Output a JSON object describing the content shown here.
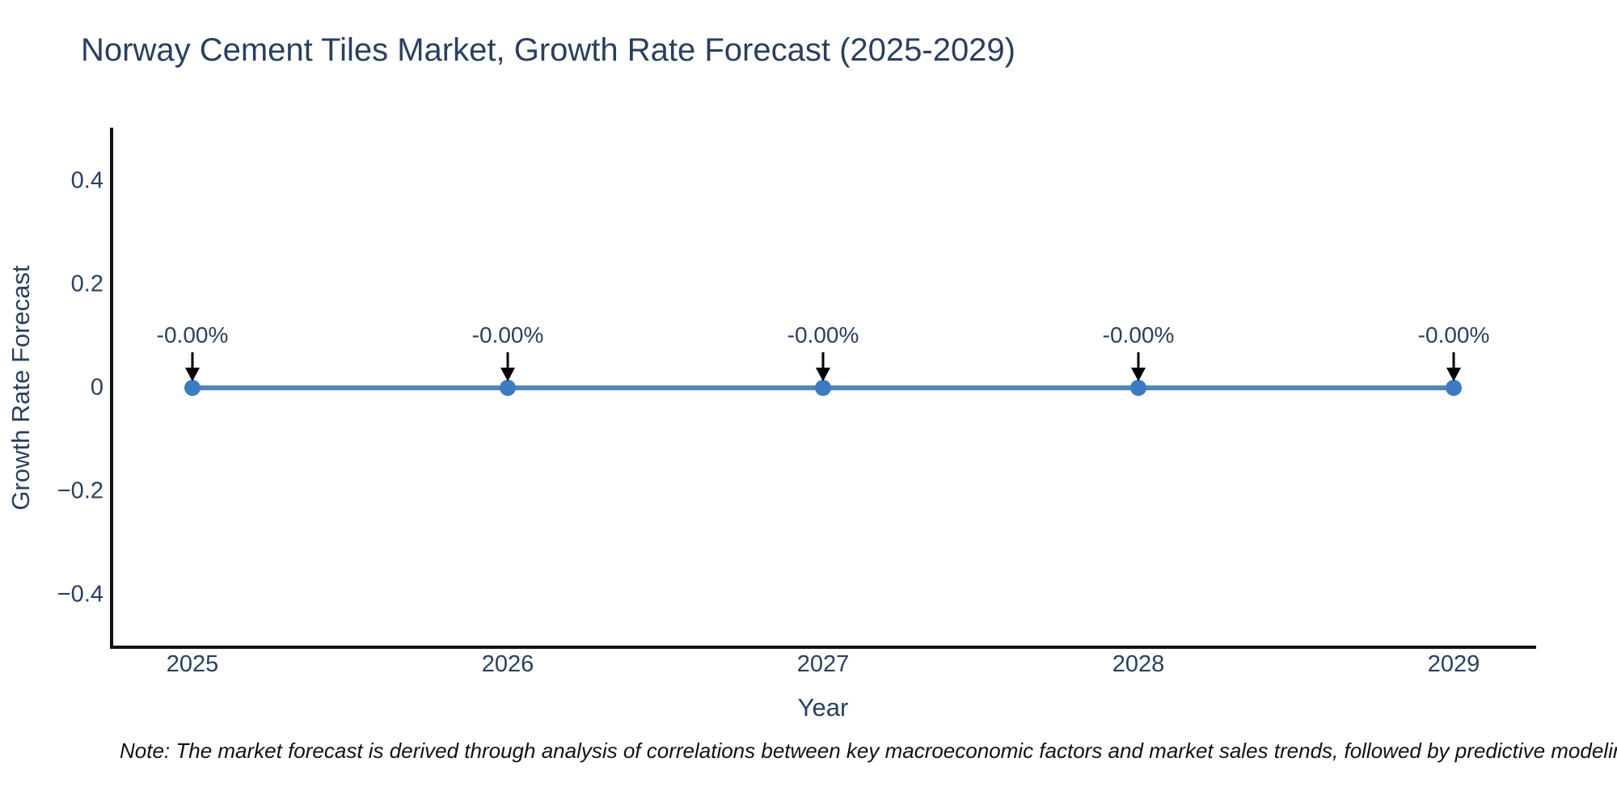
{
  "figure": {
    "note": "Note: The market forecast is derived through analysis of correlations between key macroeconomic factors and market sales trends, followed by predictive modeling to project future sales."
  },
  "chart_data": {
    "type": "line",
    "title": "Norway Cement Tiles Market, Growth Rate Forecast (2025-2029)",
    "xlabel": "Year",
    "ylabel": "Growth Rate Forecast",
    "x": [
      2025,
      2026,
      2027,
      2028,
      2029
    ],
    "series": [
      {
        "name": "Growth Rate Forecast",
        "values": [
          0,
          0,
          0,
          0,
          0
        ],
        "point_labels": [
          "-0.00%",
          "-0.00%",
          "-0.00%",
          "-0.00%",
          "-0.00%"
        ]
      }
    ],
    "xtick_labels": [
      "2025",
      "2026",
      "2027",
      "2028",
      "2029"
    ],
    "yticks": [
      0.4,
      0.2,
      0,
      -0.2,
      -0.4
    ],
    "ytick_labels": [
      "0.4",
      "0.2",
      "0",
      "−0.2",
      "−0.4"
    ],
    "ylim": [
      -0.5,
      0.5
    ],
    "grid": false,
    "legend": false,
    "colors": {
      "line": "#4e88ba",
      "marker": "#3b7cc0",
      "arrow": "#000000",
      "axis": "#111111",
      "text": "#2a3f5f",
      "note_text": "#111111",
      "background": "#ffffff"
    }
  }
}
